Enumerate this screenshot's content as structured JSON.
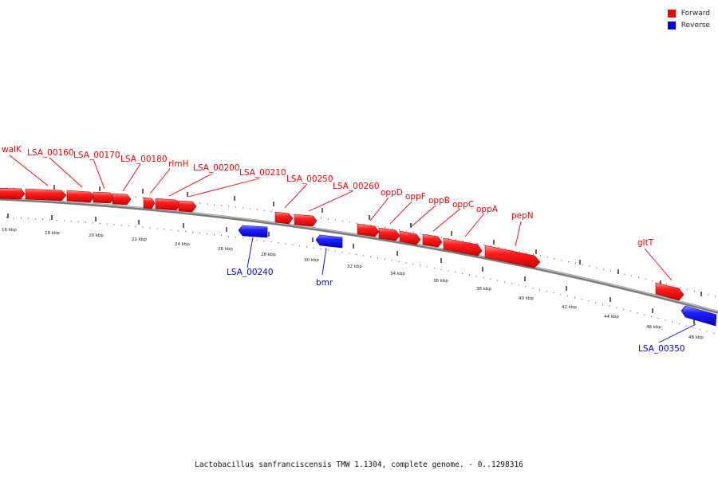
{
  "legend": {
    "forward_label": "Forward",
    "reverse_label": "Reverse",
    "forward_color": "#ee0000",
    "reverse_color": "#0000ee"
  },
  "caption": "Lactobacillus sanfranciscensis TMW 1.1304, complete genome. - 0..1298316",
  "axis": {
    "tick_labels": [
      "16 kbp",
      "18 kbp",
      "20 kbp",
      "22 kbp",
      "24 kbp",
      "26 kbp",
      "28 kbp",
      "30 kbp",
      "32 kbp",
      "34 kbp",
      "36 kbp",
      "38 kbp",
      "40 kbp",
      "42 kbp",
      "44 kbp",
      "46 kbp",
      "48 kbp"
    ]
  },
  "gene_labels": {
    "forward": [
      "walK",
      "LSA_00160",
      "LSA_00170",
      "LSA_00180",
      "rlmH",
      "LSA_00200",
      "LSA_00210",
      "LSA_00250",
      "LSA_00260",
      "oppD",
      "oppF",
      "oppB",
      "oppC",
      "oppA",
      "pepN",
      "gltT"
    ],
    "reverse": [
      "LSA_00240",
      "bmr",
      "LSA_00350"
    ]
  }
}
